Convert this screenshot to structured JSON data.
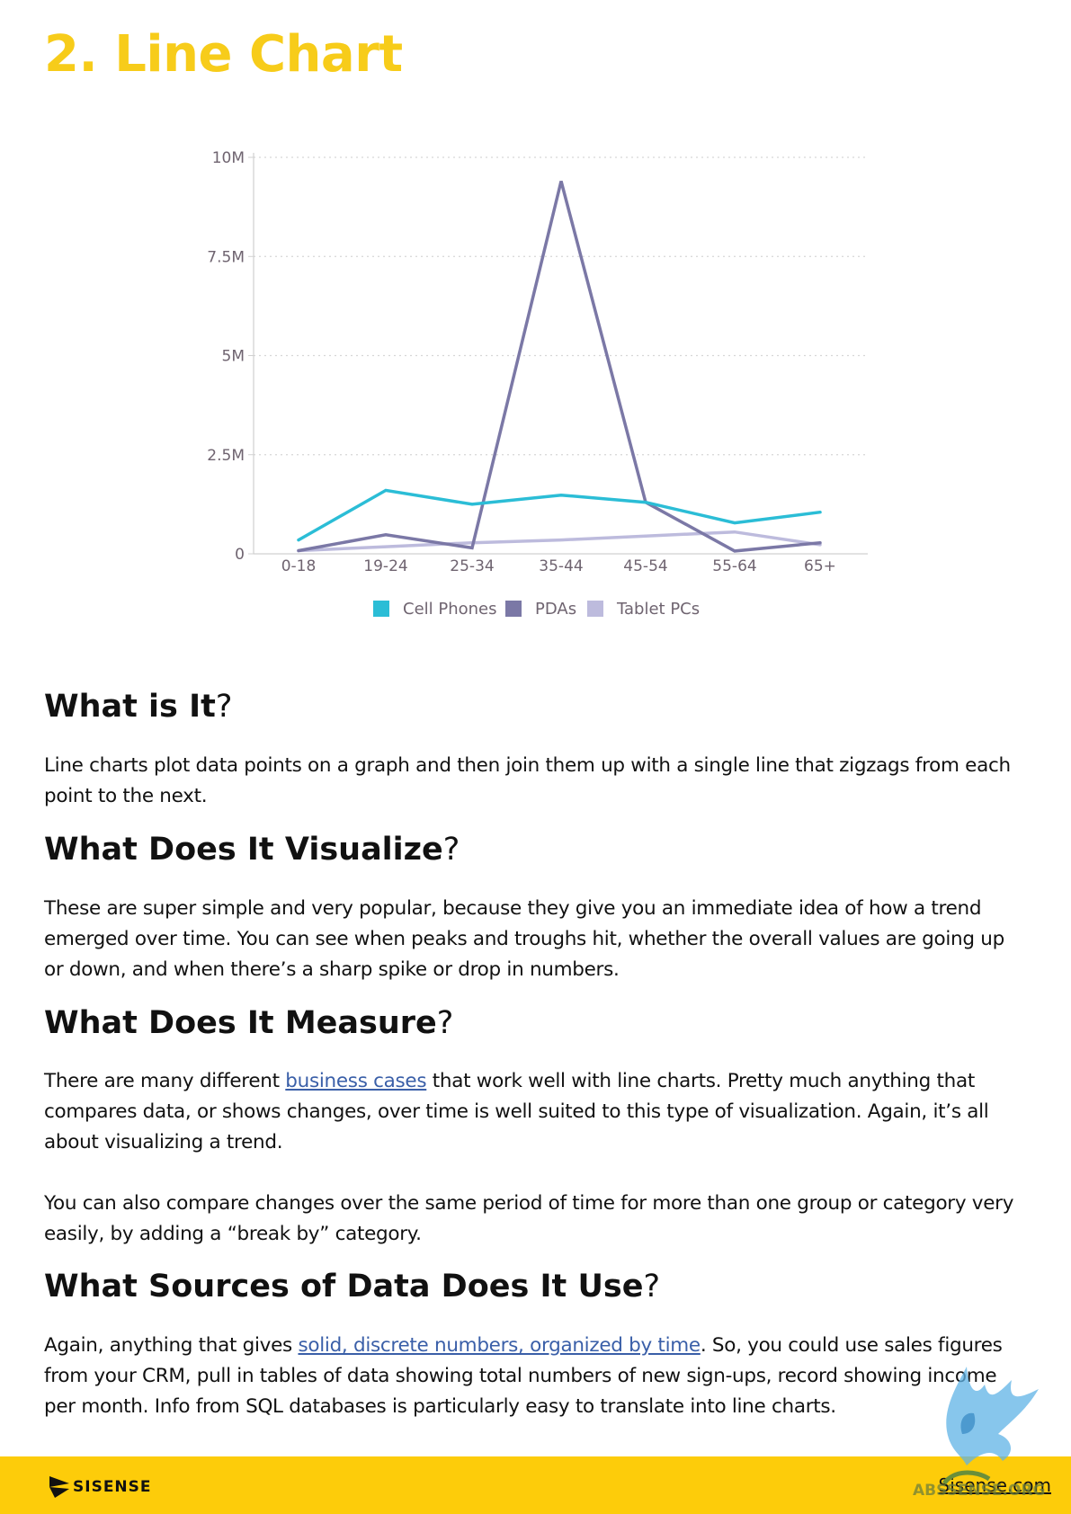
{
  "page": {
    "title": "2. Line Chart"
  },
  "chart_data": {
    "type": "line",
    "title": "",
    "xlabel": "",
    "ylabel": "",
    "categories": [
      "0-18",
      "19-24",
      "25-34",
      "35-44",
      "45-54",
      "55-64",
      "65+"
    ],
    "y_ticks": [
      "0",
      "2.5M",
      "5M",
      "7.5M",
      "10M"
    ],
    "ylim": [
      0,
      10000000
    ],
    "grid": "horizontal-dotted",
    "legend_position": "bottom",
    "series": [
      {
        "name": "Cell Phones",
        "color": "#2bbdd6",
        "values": [
          350000,
          1600000,
          1250000,
          1480000,
          1300000,
          780000,
          1050000
        ]
      },
      {
        "name": "PDAs",
        "color": "#7b78a6",
        "values": [
          80000,
          480000,
          150000,
          9400000,
          1300000,
          70000,
          280000
        ]
      },
      {
        "name": "Tablet PCs",
        "color": "#bdbbdd",
        "values": [
          80000,
          180000,
          280000,
          350000,
          450000,
          550000,
          230000
        ]
      }
    ]
  },
  "sections": [
    {
      "heading": "What is It",
      "paragraphs": [
        {
          "text": "Line charts plot data points on a graph and then join them up with a single line that zigzags from each point to the next."
        }
      ]
    },
    {
      "heading": "What Does It Visualize",
      "paragraphs": [
        {
          "text": "These are super simple and very popular, because they give you an immediate idea of how a trend emerged over time. You can see when peaks and troughs hit, whether the overall values are going up or down, and when there’s a sharp spike or drop in numbers."
        }
      ]
    },
    {
      "heading": "What Does It Measure",
      "paragraphs": [
        {
          "before": "There are many different ",
          "link": "business cases",
          "after": " that work well with line charts. Pretty much anything that compares data, or shows changes, over time is well suited to this type of visualization. Again, it’s all about visualizing a trend."
        },
        {
          "text": "You can also compare changes over the same period of time for more than one group or category very easily, by adding a “break by” category."
        }
      ]
    },
    {
      "heading": "What Sources of Data Does It Use",
      "paragraphs": [
        {
          "before": "Again, anything that gives ",
          "link": "solid, discrete numbers, organized by time",
          "after": ". So, you could use sales figures from your CRM, pull in tables of data showing total numbers of new sign-ups, record showing income per month. Info from SQL databases is particularly easy to translate into line charts."
        }
      ]
    }
  ],
  "question_mark": "?",
  "footer": {
    "logo_text": "SISENSE",
    "link": "Sisense.com",
    "color": "#fdcc0a"
  },
  "watermark": {
    "text": "ABSSENSE.ORG"
  }
}
